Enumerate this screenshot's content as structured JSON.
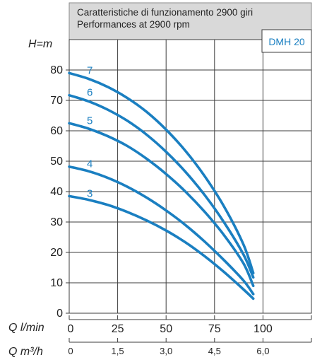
{
  "header": {
    "title_line1": "Caratteristiche di funzionamento 2900 giri",
    "title_line2": "Performances at 2900 rpm",
    "model": "DMH 20"
  },
  "colors": {
    "curve": "#1a7fc1",
    "curve_label": "#1a7fc1",
    "header_bg": "#d9d9d9",
    "model_text": "#1a7fc1",
    "grid": "#3c3c3c"
  },
  "chart_data": {
    "type": "line",
    "ylabel": "H=m",
    "xlabel": "Q l/min",
    "x2label": "Q m³/h",
    "xlim": [
      0,
      125
    ],
    "ylim": [
      0,
      80
    ],
    "x_ticks": [
      "0",
      "25",
      "50",
      "75",
      "100"
    ],
    "x_tick_values": [
      0,
      25,
      50,
      75,
      100
    ],
    "x2_ticks": [
      "0",
      "1,5",
      "3,0",
      "4,5",
      "6,0"
    ],
    "y_ticks": [
      "0",
      "10",
      "20",
      "30",
      "40",
      "50",
      "60",
      "70",
      "80"
    ],
    "y_tick_values": [
      0,
      10,
      20,
      30,
      40,
      50,
      60,
      70,
      80
    ],
    "grid": true,
    "series": [
      {
        "name": "3",
        "x": [
          0,
          10,
          20,
          30,
          40,
          50,
          60,
          70,
          80,
          90,
          95
        ],
        "y": [
          38.5,
          37.3,
          35.6,
          33.3,
          30.5,
          27.2,
          23.3,
          18.7,
          13.5,
          7.8,
          4.8
        ]
      },
      {
        "name": "4",
        "x": [
          0,
          10,
          20,
          30,
          40,
          50,
          60,
          70,
          80,
          90,
          95
        ],
        "y": [
          48.2,
          46.7,
          44.5,
          41.6,
          38.0,
          33.8,
          29.0,
          23.5,
          17.4,
          10.7,
          6.3
        ]
      },
      {
        "name": "5",
        "x": [
          0,
          10,
          20,
          30,
          40,
          50,
          60,
          70,
          80,
          90,
          95
        ],
        "y": [
          62.5,
          60.7,
          58.2,
          55.0,
          50.8,
          45.8,
          40.0,
          33.3,
          25.6,
          16.3,
          9.0
        ]
      },
      {
        "name": "6",
        "x": [
          0,
          10,
          20,
          30,
          40,
          50,
          60,
          70,
          80,
          90,
          95
        ],
        "y": [
          71.7,
          69.7,
          66.9,
          63.3,
          58.7,
          53.1,
          46.5,
          38.8,
          29.8,
          19.2,
          11.8
        ]
      },
      {
        "name": "7",
        "x": [
          0,
          10,
          20,
          30,
          40,
          50,
          60,
          70,
          80,
          90,
          95
        ],
        "y": [
          79.0,
          77.1,
          74.4,
          70.8,
          66.2,
          60.4,
          53.4,
          45.0,
          35.0,
          22.5,
          13.2
        ]
      }
    ]
  }
}
